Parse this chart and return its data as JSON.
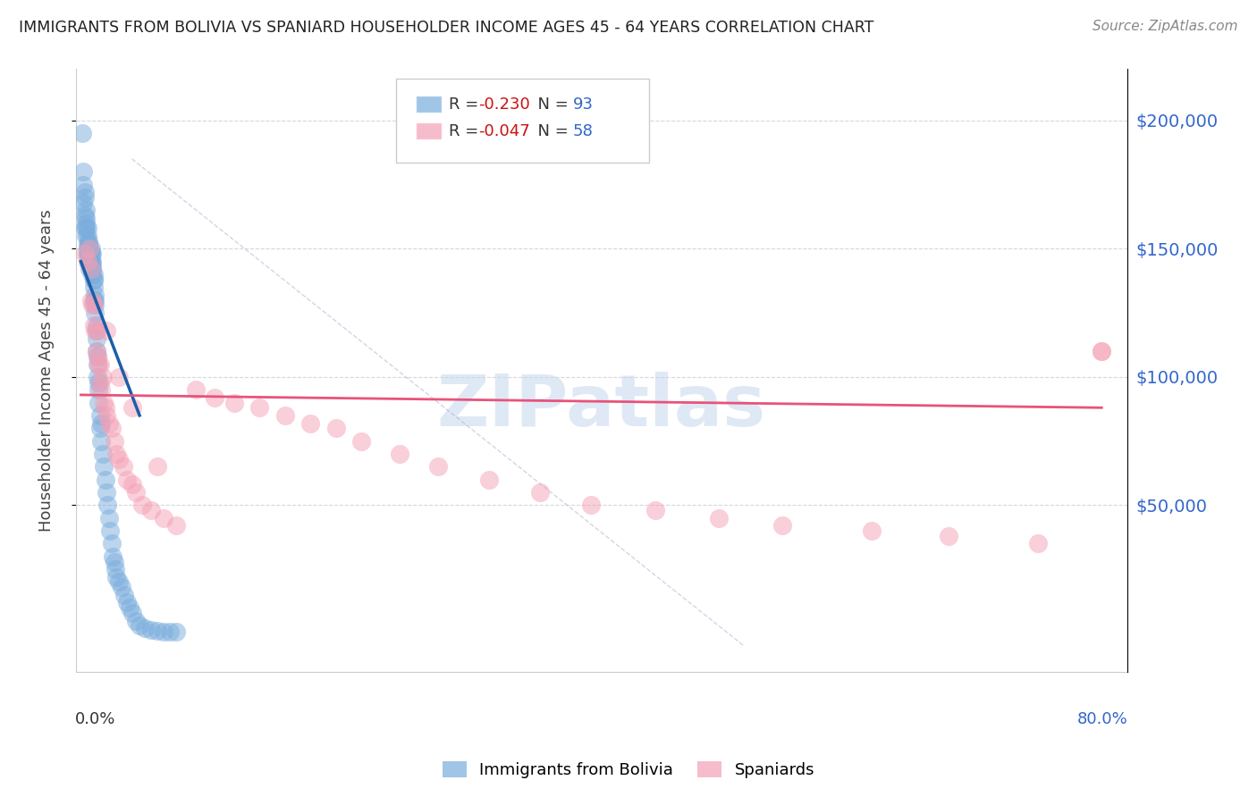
{
  "title": "IMMIGRANTS FROM BOLIVIA VS SPANIARD HOUSEHOLDER INCOME AGES 45 - 64 YEARS CORRELATION CHART",
  "source": "Source: ZipAtlas.com",
  "ylabel": "Householder Income Ages 45 - 64 years",
  "ytick_values": [
    50000,
    100000,
    150000,
    200000
  ],
  "ylim": [
    -15000,
    220000
  ],
  "xlim": [
    -0.004,
    0.82
  ],
  "R_bolivia": -0.23,
  "N_bolivia": 93,
  "R_spaniard": -0.047,
  "N_spaniard": 58,
  "color_bolivia": "#7aaddd",
  "color_spaniard": "#f4a0b5",
  "color_bolivia_line": "#1a5fa8",
  "color_spaniard_line": "#e8537a",
  "watermark_text": "ZIPatlas",
  "bolivia_x": [
    0.001,
    0.002,
    0.002,
    0.002,
    0.003,
    0.003,
    0.003,
    0.003,
    0.004,
    0.004,
    0.004,
    0.004,
    0.004,
    0.005,
    0.005,
    0.005,
    0.005,
    0.005,
    0.006,
    0.006,
    0.006,
    0.006,
    0.006,
    0.006,
    0.007,
    0.007,
    0.007,
    0.007,
    0.007,
    0.007,
    0.007,
    0.008,
    0.008,
    0.008,
    0.008,
    0.008,
    0.008,
    0.009,
    0.009,
    0.009,
    0.009,
    0.009,
    0.01,
    0.01,
    0.01,
    0.01,
    0.01,
    0.011,
    0.011,
    0.011,
    0.011,
    0.012,
    0.012,
    0.012,
    0.012,
    0.013,
    0.013,
    0.013,
    0.014,
    0.014,
    0.014,
    0.015,
    0.015,
    0.016,
    0.016,
    0.017,
    0.018,
    0.019,
    0.02,
    0.021,
    0.022,
    0.023,
    0.024,
    0.025,
    0.026,
    0.027,
    0.028,
    0.03,
    0.032,
    0.034,
    0.036,
    0.038,
    0.04,
    0.043,
    0.046,
    0.05,
    0.055,
    0.06,
    0.065,
    0.07,
    0.075,
    0.005,
    0.007
  ],
  "bolivia_y": [
    195000,
    175000,
    168000,
    180000,
    163000,
    170000,
    158000,
    172000,
    165000,
    160000,
    155000,
    162000,
    158000,
    150000,
    155000,
    148000,
    152000,
    158000,
    148000,
    152000,
    150000,
    145000,
    148000,
    153000,
    148000,
    145000,
    150000,
    142000,
    148000,
    150000,
    145000,
    148000,
    145000,
    142000,
    148000,
    150000,
    145000,
    142000,
    145000,
    148000,
    140000,
    143000,
    138000,
    140000,
    135000,
    130000,
    138000,
    128000,
    132000,
    125000,
    130000,
    120000,
    115000,
    110000,
    118000,
    105000,
    100000,
    108000,
    95000,
    90000,
    98000,
    85000,
    80000,
    75000,
    82000,
    70000,
    65000,
    60000,
    55000,
    50000,
    45000,
    40000,
    35000,
    30000,
    28000,
    25000,
    22000,
    20000,
    18000,
    15000,
    12000,
    10000,
    8000,
    5000,
    3000,
    2000,
    1500,
    1000,
    800,
    600,
    500,
    148000,
    148000
  ],
  "spaniard_x": [
    0.003,
    0.005,
    0.007,
    0.008,
    0.009,
    0.01,
    0.011,
    0.012,
    0.013,
    0.014,
    0.015,
    0.016,
    0.017,
    0.018,
    0.019,
    0.02,
    0.022,
    0.024,
    0.026,
    0.028,
    0.03,
    0.033,
    0.036,
    0.04,
    0.043,
    0.048,
    0.055,
    0.065,
    0.075,
    0.09,
    0.105,
    0.12,
    0.14,
    0.16,
    0.18,
    0.2,
    0.22,
    0.25,
    0.28,
    0.32,
    0.36,
    0.4,
    0.45,
    0.5,
    0.55,
    0.62,
    0.68,
    0.75,
    0.8,
    0.008,
    0.01,
    0.012,
    0.015,
    0.02,
    0.03,
    0.04,
    0.06,
    0.8
  ],
  "spaniard_y": [
    148000,
    145000,
    150000,
    142000,
    128000,
    120000,
    118000,
    110000,
    108000,
    105000,
    98000,
    95000,
    100000,
    90000,
    88000,
    85000,
    82000,
    80000,
    75000,
    70000,
    68000,
    65000,
    60000,
    58000,
    55000,
    50000,
    48000,
    45000,
    42000,
    95000,
    92000,
    90000,
    88000,
    85000,
    82000,
    80000,
    75000,
    70000,
    65000,
    60000,
    55000,
    50000,
    48000,
    45000,
    42000,
    40000,
    38000,
    35000,
    110000,
    130000,
    128000,
    118000,
    105000,
    118000,
    100000,
    88000,
    65000,
    110000
  ]
}
